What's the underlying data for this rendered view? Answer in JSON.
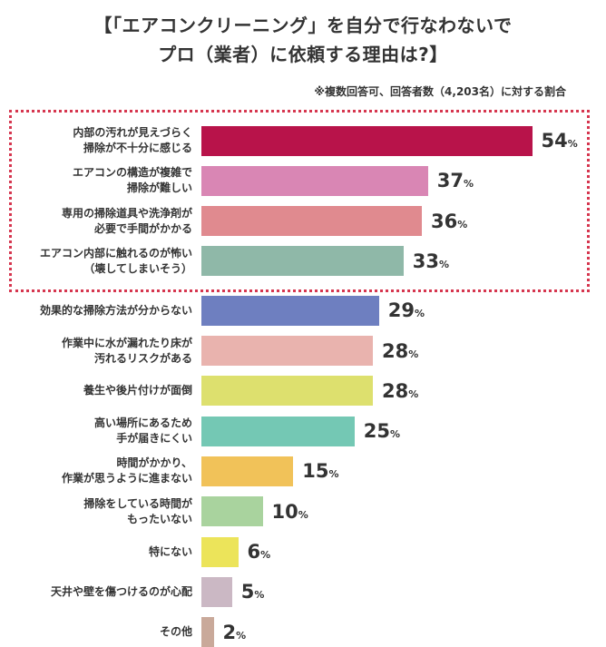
{
  "title_line1": "【「エアコンクリーニング」を自分で行なわないで",
  "title_line2": "プロ（業者）に依頼する理由は?】",
  "note": "※複数回答可、回答者数（4,203名）に対する割合",
  "chart_data": {
    "type": "bar",
    "orientation": "horizontal",
    "unit": "%",
    "xlim": [
      0,
      100
    ],
    "highlighted_top_n": 4,
    "categories": [
      "内部の汚れが見えづらく\n掃除が不十分に感じる",
      "エアコンの構造が複雑で\n掃除が難しい",
      "専用の掃除道具や洗浄剤が\n必要で手間がかかる",
      "エアコン内部に触れるのが怖い\n（壊してしまいそう）",
      "効果的な掃除方法が分からない",
      "作業中に水が漏れたり床が\n汚れるリスクがある",
      "養生や後片付けが面倒",
      "高い場所にあるため\n手が届きにくい",
      "時間がかかり、\n作業が思うように進まない",
      "掃除をしている時間が\nもったいない",
      "特にない",
      "天井や壁を傷つけるのが心配",
      "その他"
    ],
    "values": [
      54,
      37,
      36,
      33,
      29,
      28,
      28,
      25,
      15,
      10,
      6,
      5,
      2
    ],
    "colors": [
      "#b8134a",
      "#d986b4",
      "#e08a8f",
      "#8fb8a8",
      "#6e7fc0",
      "#e9b3ae",
      "#dde06e",
      "#74c8b4",
      "#f1c259",
      "#a9d39e",
      "#ece45a",
      "#cbb8c4",
      "#c9a99a"
    ]
  }
}
